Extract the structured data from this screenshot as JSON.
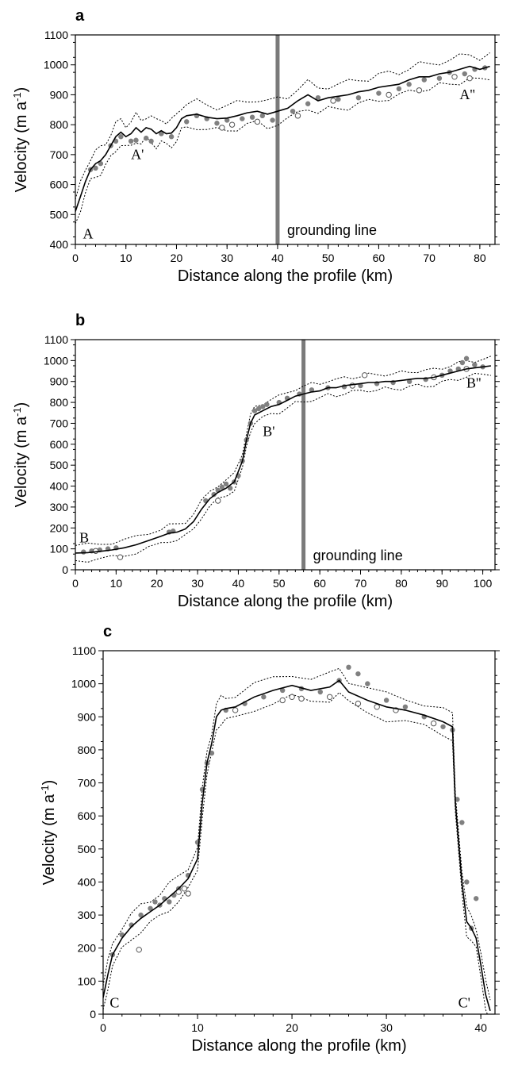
{
  "chart_data": [
    {
      "type": "line",
      "panel": "a",
      "xlabel": "Distance along the profile (km)",
      "ylabel": "Velocity (m a",
      "ylabel_sup": "-1",
      "ylabel_end": ")",
      "xlim": [
        0,
        83
      ],
      "ylim": [
        400,
        1100
      ],
      "xticks": [
        0,
        10,
        20,
        30,
        40,
        50,
        60,
        70,
        80
      ],
      "yticks": [
        400,
        500,
        600,
        700,
        800,
        900,
        1000,
        1100
      ],
      "grounding_line": {
        "x": 40,
        "label": "grounding line"
      },
      "annotations": [
        {
          "text": "A",
          "x": 1.5,
          "y": 420
        },
        {
          "text": "A'",
          "x": 11,
          "y": 685
        },
        {
          "text": "A''",
          "x": 76,
          "y": 885
        }
      ],
      "model": {
        "x": [
          0,
          1,
          2,
          3,
          4,
          5,
          6,
          7,
          8,
          9,
          10,
          11,
          12,
          13,
          14,
          15,
          16,
          17,
          18,
          19,
          20,
          21,
          22,
          24,
          26,
          28,
          30,
          32,
          34,
          36,
          38,
          40,
          42,
          44,
          46,
          48,
          50,
          52,
          54,
          56,
          58,
          60,
          62,
          64,
          66,
          68,
          70,
          72,
          74,
          76,
          78,
          80,
          82
        ],
        "y": [
          510,
          560,
          610,
          650,
          670,
          680,
          700,
          730,
          760,
          775,
          760,
          770,
          790,
          775,
          790,
          785,
          770,
          780,
          770,
          772,
          790,
          820,
          830,
          835,
          825,
          820,
          822,
          830,
          840,
          845,
          835,
          845,
          855,
          880,
          900,
          880,
          890,
          895,
          900,
          910,
          915,
          925,
          930,
          935,
          950,
          960,
          960,
          970,
          975,
          985,
          995,
          985,
          995
        ]
      },
      "envelope_offset": 45,
      "obs_filled": {
        "x": [
          3,
          4,
          5,
          7,
          8,
          9,
          11,
          12,
          14,
          15,
          17,
          19,
          22,
          24,
          26,
          28,
          30,
          33,
          35,
          37,
          39,
          43,
          46,
          48,
          52,
          56,
          60,
          64,
          66,
          69,
          72,
          74,
          77,
          79,
          81
        ],
        "y": [
          650,
          655,
          670,
          730,
          745,
          760,
          745,
          748,
          755,
          745,
          770,
          760,
          810,
          830,
          820,
          805,
          815,
          820,
          825,
          830,
          815,
          845,
          870,
          890,
          885,
          890,
          905,
          920,
          935,
          950,
          955,
          975,
          970,
          985,
          990
        ]
      },
      "obs_open": {
        "x": [
          29,
          31,
          36,
          44,
          51,
          62,
          68,
          75,
          78
        ],
        "y": [
          790,
          800,
          810,
          830,
          880,
          900,
          915,
          960,
          955
        ]
      }
    },
    {
      "type": "line",
      "panel": "b",
      "xlabel": "Distance along the profile (km)",
      "ylabel": "Velocity (m a",
      "ylabel_sup": "-1",
      "ylabel_end": ")",
      "xlim": [
        0,
        103
      ],
      "ylim": [
        0,
        1100
      ],
      "xticks": [
        0,
        10,
        20,
        30,
        40,
        50,
        60,
        70,
        80,
        90,
        100
      ],
      "yticks": [
        0,
        100,
        200,
        300,
        400,
        500,
        600,
        700,
        800,
        900,
        1000,
        1100
      ],
      "grounding_line": {
        "x": 56,
        "label": "grounding line"
      },
      "annotations": [
        {
          "text": "B",
          "x": 1,
          "y": 130
        },
        {
          "text": "B'",
          "x": 46,
          "y": 640
        },
        {
          "text": "B''",
          "x": 96,
          "y": 870
        }
      ],
      "model": {
        "x": [
          0,
          3,
          6,
          9,
          12,
          15,
          18,
          21,
          23,
          25,
          27,
          29,
          31,
          33,
          35,
          37,
          39,
          41,
          42,
          43,
          44,
          46,
          48,
          50,
          52,
          54,
          56,
          58,
          60,
          62,
          64,
          66,
          68,
          70,
          72,
          74,
          76,
          78,
          80,
          82,
          84,
          86,
          88,
          90,
          92,
          94,
          96,
          98,
          100,
          102
        ],
        "y": [
          80,
          82,
          88,
          95,
          105,
          120,
          140,
          160,
          175,
          180,
          195,
          230,
          290,
          340,
          370,
          390,
          420,
          520,
          620,
          700,
          740,
          760,
          780,
          790,
          810,
          830,
          840,
          850,
          855,
          870,
          870,
          880,
          885,
          890,
          895,
          895,
          900,
          900,
          905,
          910,
          915,
          915,
          920,
          930,
          940,
          950,
          960,
          965,
          970,
          975
        ]
      },
      "envelope_offset": 40,
      "obs_filled": {
        "x": [
          2,
          4,
          6,
          8,
          10,
          23,
          24,
          32,
          34,
          35,
          36,
          37,
          38,
          39,
          40,
          41,
          42,
          43,
          44,
          45,
          46,
          47,
          50,
          52,
          55,
          58,
          62,
          66,
          70,
          74,
          78,
          82,
          86,
          88,
          90,
          92,
          94,
          95,
          96,
          98,
          100
        ],
        "y": [
          85,
          90,
          95,
          100,
          105,
          180,
          185,
          330,
          360,
          380,
          395,
          410,
          390,
          420,
          450,
          520,
          620,
          700,
          760,
          770,
          780,
          790,
          800,
          820,
          840,
          860,
          870,
          875,
          880,
          890,
          895,
          900,
          910,
          920,
          930,
          950,
          960,
          990,
          1010,
          980,
          970
        ]
      },
      "obs_open": {
        "x": [
          5,
          11,
          35,
          68,
          71,
          88,
          96
        ],
        "y": [
          90,
          60,
          330,
          880,
          930,
          920,
          960
        ]
      }
    },
    {
      "type": "line",
      "panel": "c",
      "xlabel": "Distance along the profile (km)",
      "ylabel": "Velocity (m a",
      "ylabel_sup": "-1",
      "ylabel_end": ")",
      "xlim": [
        0,
        41.5
      ],
      "ylim": [
        0,
        1100
      ],
      "xticks": [
        0,
        10,
        20,
        30,
        40
      ],
      "yticks": [
        0,
        100,
        200,
        300,
        400,
        500,
        600,
        700,
        800,
        900,
        1000,
        1100
      ],
      "annotations": [
        {
          "text": "C",
          "x": 0.7,
          "y": 20
        },
        {
          "text": "C'",
          "x": 37.6,
          "y": 20
        }
      ],
      "model": {
        "x": [
          0,
          0.5,
          1,
          2,
          3,
          4,
          5,
          6,
          7,
          8,
          9,
          10,
          10.5,
          11,
          11.5,
          12,
          12.5,
          13,
          14,
          16,
          18,
          20,
          22,
          24,
          25,
          26,
          28,
          30,
          32,
          34,
          36,
          37,
          37.3,
          38,
          38.5,
          39,
          39.5,
          40,
          40.5,
          41
        ],
        "y": [
          50,
          120,
          180,
          230,
          265,
          290,
          310,
          330,
          355,
          380,
          410,
          470,
          640,
          760,
          820,
          900,
          920,
          925,
          930,
          960,
          980,
          995,
          980,
          990,
          1010,
          975,
          950,
          930,
          920,
          905,
          885,
          870,
          640,
          400,
          280,
          260,
          230,
          150,
          60,
          10
        ]
      },
      "envelope_offset": 40,
      "obs_filled": {
        "x": [
          1,
          2,
          3,
          4,
          5,
          5.5,
          6,
          6.5,
          7,
          7.5,
          8,
          9,
          10,
          10.5,
          11,
          11.5,
          13,
          15,
          17,
          19,
          21,
          23,
          25,
          26,
          27,
          28,
          30,
          32,
          34,
          35,
          36,
          37,
          37.5,
          38,
          38.5,
          39,
          39.5
        ],
        "y": [
          180,
          240,
          270,
          300,
          320,
          340,
          330,
          350,
          340,
          360,
          380,
          420,
          520,
          680,
          760,
          790,
          920,
          940,
          960,
          980,
          985,
          975,
          1010,
          1050,
          1030,
          1000,
          950,
          930,
          900,
          880,
          870,
          860,
          650,
          580,
          400,
          260,
          350
        ]
      },
      "obs_open": {
        "x": [
          3.8,
          8,
          8.6,
          9,
          14,
          19,
          20,
          21,
          24,
          27,
          29,
          31,
          35
        ],
        "y": [
          195,
          370,
          380,
          365,
          920,
          950,
          960,
          955,
          960,
          940,
          930,
          920,
          880
        ]
      }
    }
  ]
}
